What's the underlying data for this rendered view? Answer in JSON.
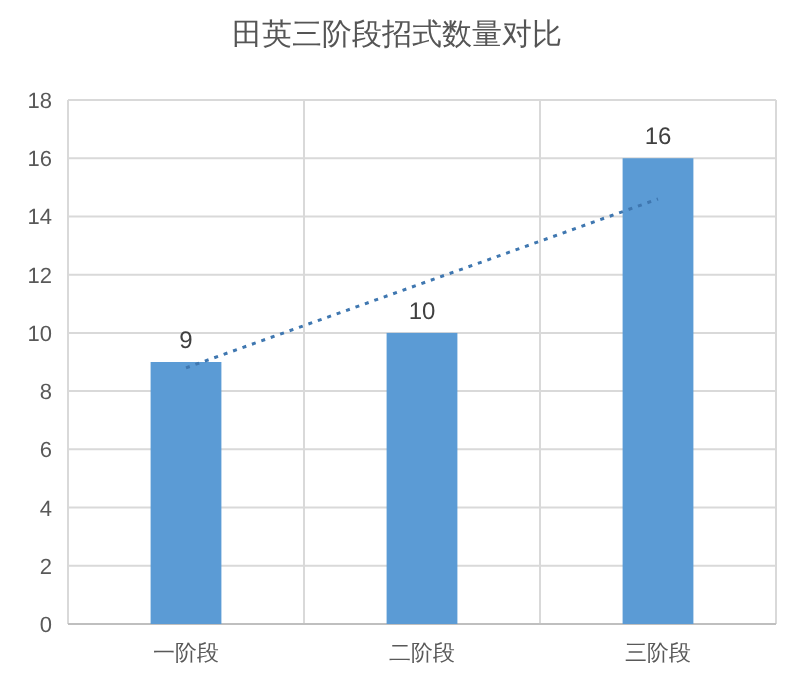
{
  "chart_data": {
    "type": "bar",
    "title": "田英三阶段招式数量对比",
    "categories": [
      "一阶段",
      "二阶段",
      "三阶段"
    ],
    "series": [
      {
        "color": "#5b9bd5",
        "values": [
          9,
          10,
          16
        ],
        "value_labels": [
          "9",
          "10",
          "16"
        ]
      },
      {
        "type": "line",
        "color": "#3f77b0",
        "x": [
          "一阶段",
          "三阶段"
        ],
        "values": [
          8.8,
          14.6
        ],
        "line_style": "dotted",
        "marker": "none"
      }
    ],
    "ylim": [
      0,
      18
    ],
    "yticks": [
      0,
      2,
      4,
      6,
      8,
      10,
      12,
      14,
      16,
      18
    ],
    "grid": true
  }
}
